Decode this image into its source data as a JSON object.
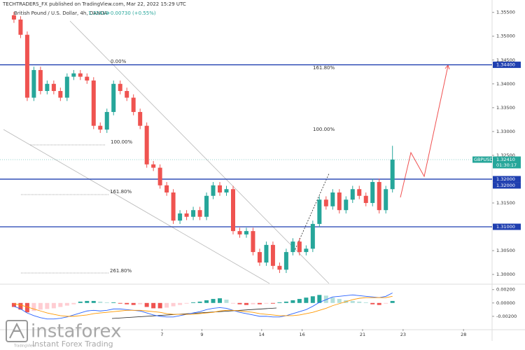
{
  "publisher": "TECHTRADERS_FX published on TradingView.com, Mar 22, 2022 15:29 UTC",
  "watermark": {
    "brand": "instaforex",
    "tagline": "Instant Forex Trading",
    "source": "TradingView"
  },
  "chart_data": {
    "type": "candlestick",
    "title": "British Pound / U.S. Dollar, 4h, OANDA",
    "quote": "1.32410",
    "change": "+0.00730 (+0.55%)",
    "up_color": "#26a69a",
    "down_color": "#ef5350",
    "x": [
      0,
      1,
      2,
      3,
      4,
      5,
      6,
      7,
      8,
      9,
      10,
      11,
      12,
      13,
      14,
      15,
      16,
      17,
      18,
      19,
      20,
      21,
      22,
      23,
      24,
      25,
      26,
      27,
      28,
      29,
      30,
      31,
      32,
      33,
      34,
      35,
      36,
      37,
      38,
      39,
      40,
      41,
      42,
      43,
      44,
      45,
      46,
      47,
      48,
      49,
      50,
      51,
      52,
      53,
      54,
      55,
      56,
      57
    ],
    "open": [
      1.3544,
      1.3535,
      1.3503,
      1.3371,
      1.3429,
      1.3385,
      1.34,
      1.3385,
      1.3371,
      1.3415,
      1.3422,
      1.3415,
      1.3407,
      1.3312,
      1.3304,
      1.3341,
      1.34,
      1.3385,
      1.3371,
      1.3341,
      1.3312,
      1.3231,
      1.3224,
      1.3187,
      1.3172,
      1.3113,
      1.3128,
      1.3121,
      1.3135,
      1.3121,
      1.3165,
      1.3187,
      1.3172,
      1.3179,
      1.3091,
      1.3084,
      1.3091,
      1.3047,
      1.3025,
      1.3062,
      1.3018,
      1.301,
      1.3047,
      1.3069,
      1.3047,
      1.3054,
      1.3106,
      1.3157,
      1.3143,
      1.3172,
      1.3135,
      1.3157,
      1.3179,
      1.3165,
      1.315,
      1.3194,
      1.3135,
      1.3179
    ],
    "high": [
      1.3551,
      1.3542,
      1.351,
      1.3436,
      1.3436,
      1.3407,
      1.3407,
      1.3392,
      1.3422,
      1.3429,
      1.3429,
      1.3422,
      1.3414,
      1.3319,
      1.3348,
      1.3407,
      1.3407,
      1.3392,
      1.3378,
      1.3348,
      1.3319,
      1.3238,
      1.3231,
      1.3194,
      1.3179,
      1.3135,
      1.3135,
      1.3142,
      1.3142,
      1.3172,
      1.3194,
      1.3194,
      1.3186,
      1.3186,
      1.3098,
      1.3098,
      1.3098,
      1.3054,
      1.3069,
      1.3069,
      1.3025,
      1.3054,
      1.3076,
      1.3076,
      1.3061,
      1.3113,
      1.3164,
      1.3164,
      1.3179,
      1.3179,
      1.3164,
      1.3186,
      1.3186,
      1.3172,
      1.3201,
      1.3201,
      1.3186,
      1.327
    ],
    "low": [
      1.3528,
      1.3496,
      1.3364,
      1.3364,
      1.3378,
      1.3378,
      1.3378,
      1.3364,
      1.3364,
      1.3408,
      1.3408,
      1.34,
      1.3305,
      1.3297,
      1.3297,
      1.3334,
      1.3378,
      1.3364,
      1.3334,
      1.3305,
      1.3224,
      1.3217,
      1.318,
      1.3165,
      1.3106,
      1.3106,
      1.3114,
      1.3114,
      1.3114,
      1.3114,
      1.3158,
      1.3165,
      1.3165,
      1.3084,
      1.3077,
      1.3077,
      1.304,
      1.3018,
      1.3018,
      1.3011,
      1.3003,
      1.3003,
      1.304,
      1.304,
      1.304,
      1.3047,
      1.3099,
      1.3136,
      1.3136,
      1.3128,
      1.3128,
      1.315,
      1.3158,
      1.3143,
      1.3143,
      1.3128,
      1.3128,
      1.3172
    ],
    "close": [
      1.3535,
      1.3503,
      1.3371,
      1.3429,
      1.3385,
      1.34,
      1.3385,
      1.3371,
      1.3415,
      1.3422,
      1.3415,
      1.3407,
      1.3312,
      1.3304,
      1.3341,
      1.34,
      1.3385,
      1.3371,
      1.3341,
      1.3312,
      1.3231,
      1.3224,
      1.3187,
      1.3172,
      1.3113,
      1.3128,
      1.3121,
      1.3135,
      1.3121,
      1.3165,
      1.3187,
      1.3172,
      1.3179,
      1.3091,
      1.3084,
      1.3091,
      1.3047,
      1.3025,
      1.3062,
      1.3018,
      1.301,
      1.3047,
      1.3069,
      1.3047,
      1.3054,
      1.3106,
      1.3157,
      1.3143,
      1.3172,
      1.3135,
      1.3157,
      1.3179,
      1.3165,
      1.315,
      1.3194,
      1.3135,
      1.3179,
      1.3241
    ],
    "xlim": [
      -2.1,
      72
    ],
    "xticks": [
      {
        "value": 22.3,
        "label": "7"
      },
      {
        "value": 28.3,
        "label": "9"
      },
      {
        "value": 37.3,
        "label": "14"
      },
      {
        "value": 43.4,
        "label": "16"
      },
      {
        "value": 52.5,
        "label": "21"
      },
      {
        "value": 58.6,
        "label": "23"
      },
      {
        "value": 67.7,
        "label": "28"
      }
    ],
    "ylim": [
      1.2981,
      1.3576
    ],
    "yticks": [
      {
        "value": 1.355,
        "label": "1.35500"
      },
      {
        "value": 1.35,
        "label": "1.35000"
      },
      {
        "value": 1.345,
        "label": "1.34500"
      },
      {
        "value": 1.34,
        "label": "1.34000"
      },
      {
        "value": 1.335,
        "label": "1.33500"
      },
      {
        "value": 1.33,
        "label": "1.33000"
      },
      {
        "value": 1.325,
        "label": "1.32500"
      },
      {
        "value": 1.315,
        "label": "1.31500"
      },
      {
        "value": 1.305,
        "label": "1.30500"
      },
      {
        "value": 1.3,
        "label": "1.30000"
      }
    ],
    "levels": [
      {
        "value": 1.344,
        "label": "1.34400"
      },
      {
        "value": 1.32,
        "label": "1.32000"
      },
      {
        "value": 1.31,
        "label": "1.31000"
      }
    ],
    "level_color": "#1f3fb0",
    "last_price": {
      "value": 1.3241,
      "label": "1.32410"
    },
    "symbol_tag": "GBPUSD",
    "countdown": "01:30:17",
    "annotations": [
      "0.00%",
      "161.80%",
      "100.00%",
      "100.00%",
      "161.80%",
      "261.80%"
    ],
    "macd": {
      "histogram": [
        -0.0006,
        -0.001,
        -0.0014,
        -0.0012,
        -0.001,
        -0.0009,
        -0.0008,
        -0.0006,
        -0.0004,
        -0.0002,
        0.0002,
        0.0003,
        0.0003,
        0.0002,
        0.0001,
        0.0001,
        -0.0001,
        -0.0002,
        -0.0003,
        -0.0002,
        -0.0006,
        -0.0008,
        -0.0008,
        -0.0007,
        -0.0005,
        -0.0003,
        -0.0001,
        0.0001,
        0.0002,
        0.0004,
        0.0006,
        0.0007,
        0.0005,
        -0.0001,
        -0.0002,
        -0.0003,
        -0.0002,
        -0.0002,
        -0.0001,
        -0.0001,
        0.0001,
        0.0002,
        0.0004,
        0.0006,
        0.0008,
        0.001,
        0.0012,
        0.0011,
        0.0008,
        0.0006,
        0.0004,
        0.0003,
        0.0002,
        0.0001,
        -0.0002,
        -0.0003,
        -0.0001,
        0.0003
      ],
      "macd_line": [
        -0.0005,
        -0.0009,
        -0.0015,
        -0.0019,
        -0.0022,
        -0.0024,
        -0.0024,
        -0.0023,
        -0.0021,
        -0.0018,
        -0.0015,
        -0.0012,
        -0.0011,
        -0.0012,
        -0.0011,
        -0.0009,
        -0.0009,
        -0.001,
        -0.0011,
        -0.0012,
        -0.0015,
        -0.0018,
        -0.002,
        -0.0021,
        -0.0021,
        -0.0019,
        -0.0017,
        -0.0015,
        -0.0013,
        -0.001,
        -0.0008,
        -0.0007,
        -0.0008,
        -0.0011,
        -0.0014,
        -0.0016,
        -0.0018,
        -0.002,
        -0.002,
        -0.0021,
        -0.0021,
        -0.0019,
        -0.0016,
        -0.0013,
        -0.001,
        -0.0005,
        0.0001,
        0.0005,
        0.0009,
        0.001,
        0.0011,
        0.0012,
        0.0011,
        0.001,
        0.0009,
        0.0008,
        0.001,
        0.0015
      ],
      "signal_line": [
        -0.0001,
        -0.0003,
        -0.0006,
        -0.0009,
        -0.0012,
        -0.0015,
        -0.0017,
        -0.0019,
        -0.002,
        -0.002,
        -0.0019,
        -0.0018,
        -0.0016,
        -0.0015,
        -0.0014,
        -0.0013,
        -0.0012,
        -0.0011,
        -0.0011,
        -0.0011,
        -0.0012,
        -0.0013,
        -0.0014,
        -0.0016,
        -0.0017,
        -0.0017,
        -0.0017,
        -0.0017,
        -0.0016,
        -0.0015,
        -0.0014,
        -0.0012,
        -0.0011,
        -0.0011,
        -0.0012,
        -0.0013,
        -0.0014,
        -0.0016,
        -0.0017,
        -0.0018,
        -0.0019,
        -0.0019,
        -0.0019,
        -0.0018,
        -0.0016,
        -0.0014,
        -0.0011,
        -0.0008,
        -0.0004,
        -0.0001,
        0.0002,
        0.0005,
        0.0007,
        0.0008,
        0.0008,
        0.0008,
        0.0008,
        0.001
      ],
      "macd_color": "#2962ff",
      "signal_color": "#ff9800",
      "ylim": [
        -0.0039,
        0.0026
      ],
      "yticks": [
        {
          "value": 0.002,
          "label": "0.00200"
        },
        {
          "value": 0,
          "label": "0.00000"
        },
        {
          "value": -0.002,
          "label": "-0.00200"
        }
      ]
    }
  }
}
